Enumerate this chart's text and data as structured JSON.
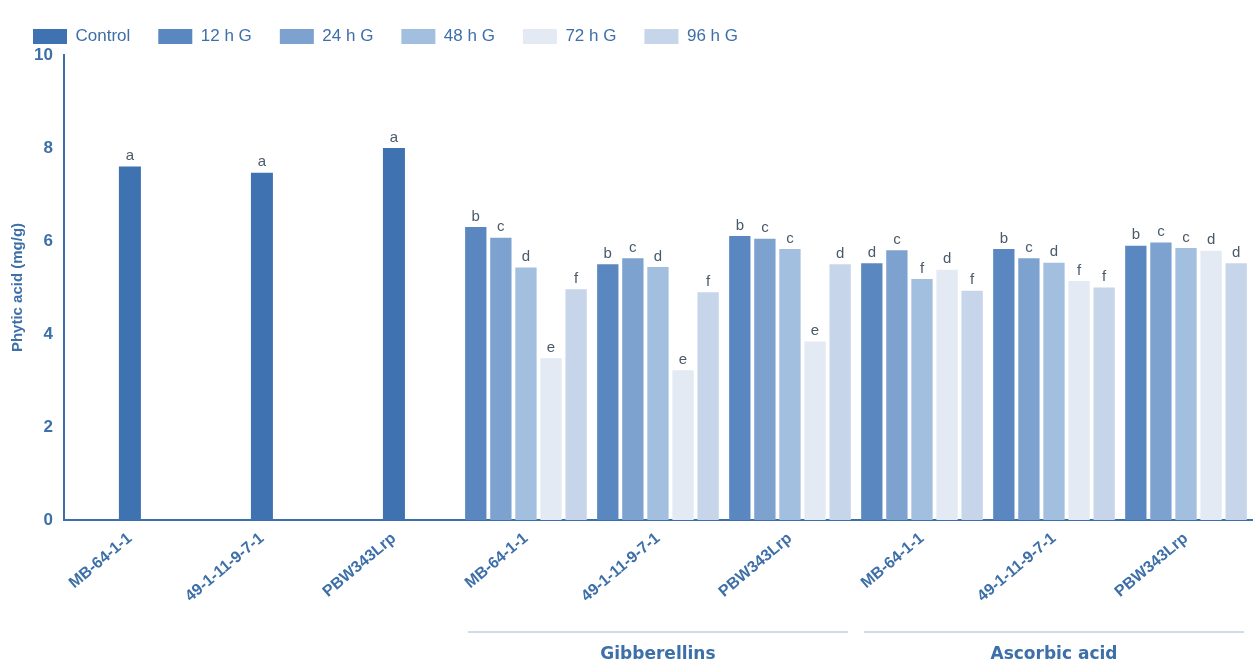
{
  "chart_data": {
    "type": "bar",
    "ylabel": "Phytic acid (mg/g)",
    "categories": [
      "MB-64-1-1",
      "49-1-11-9-7-1",
      "PBW343Lrp",
      "MB-64-1-1",
      "49-1-11-9-7-1",
      "PBW343Lrp",
      "MB-64-1-1",
      "49-1-11-9-7-1",
      "PBW343Lrp"
    ],
    "series": [
      {
        "name": "Control",
        "color": "#3f72b0",
        "values": [
          7.6,
          7.47,
          8.0,
          null,
          null,
          null,
          null,
          null,
          null
        ],
        "value_labels": [
          "a",
          "a",
          "a",
          null,
          null,
          null,
          null,
          null,
          null
        ]
      },
      {
        "name": "12 h G",
        "color": "#5a87c0",
        "values": [
          null,
          null,
          null,
          6.3,
          5.5,
          6.11,
          5.52,
          5.83,
          5.9
        ],
        "value_labels": [
          null,
          null,
          null,
          "b",
          "b",
          "b",
          "d",
          "b",
          "b"
        ]
      },
      {
        "name": "24 h G",
        "color": "#7da2d0",
        "values": [
          null,
          null,
          null,
          6.07,
          5.63,
          6.05,
          5.8,
          5.63,
          5.97
        ],
        "value_labels": [
          null,
          null,
          null,
          "c",
          "c",
          "c",
          "c",
          "c",
          "c"
        ]
      },
      {
        "name": "48 h G",
        "color": "#a3bfe0",
        "values": [
          null,
          null,
          null,
          5.43,
          5.44,
          5.83,
          5.18,
          5.53,
          5.85
        ],
        "value_labels": [
          null,
          null,
          null,
          "d",
          "d",
          "c",
          "f",
          "d",
          "c"
        ]
      },
      {
        "name": "72 h G",
        "color": "#e3eaf4",
        "values": [
          null,
          null,
          null,
          3.48,
          3.22,
          3.84,
          5.38,
          5.14,
          5.79
        ],
        "value_labels": [
          null,
          null,
          null,
          "e",
          "e",
          "e",
          "d",
          "f",
          "d"
        ]
      },
      {
        "name": "96 h G",
        "color": "#c6d5ea",
        "values": [
          null,
          null,
          null,
          4.96,
          4.9,
          5.5,
          4.93,
          5.0,
          5.52
        ],
        "value_labels": [
          null,
          null,
          null,
          "f",
          "f",
          "d",
          "f",
          "f",
          "d"
        ]
      }
    ],
    "ylim": [
      0,
      10
    ],
    "yticks": [
      0,
      2,
      4,
      6,
      8,
      10
    ],
    "grid": false,
    "legend": "top",
    "annotations": [
      "Gibberellins",
      "Ascorbic acid"
    ]
  }
}
